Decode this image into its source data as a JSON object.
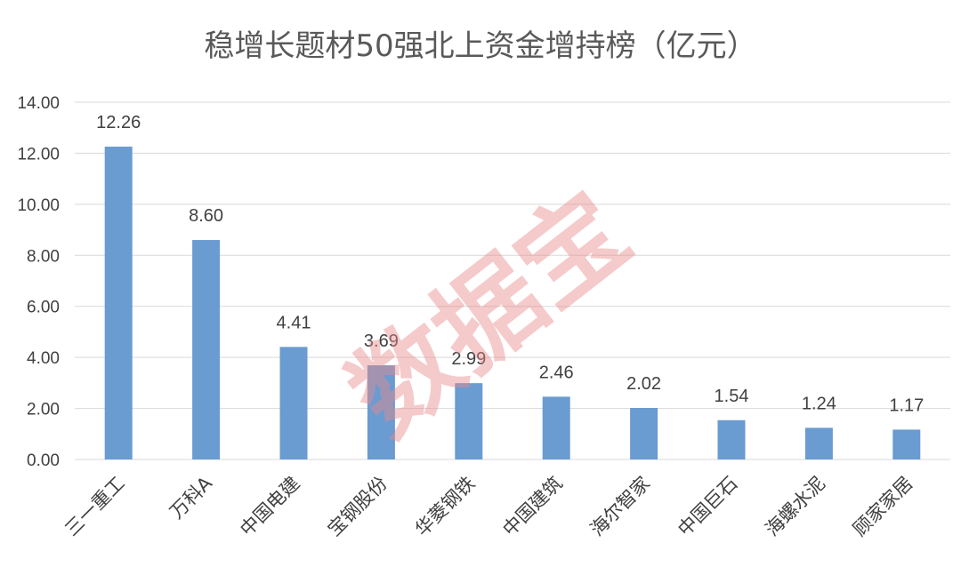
{
  "chart_data": {
    "type": "bar",
    "title": "稳增长题材50强北上资金增持榜（亿元）",
    "xlabel": "",
    "ylabel": "",
    "ylim": [
      0,
      14
    ],
    "y_ticks": [
      "0.00",
      "2.00",
      "4.00",
      "6.00",
      "8.00",
      "10.00",
      "12.00",
      "14.00"
    ],
    "categories": [
      "三一重工",
      "万科A",
      "中国电建",
      "宝钢股份",
      "华菱钢铁",
      "中国建筑",
      "海尔智家",
      "中国巨石",
      "海螺水泥",
      "顾家家居"
    ],
    "values": [
      12.26,
      8.6,
      4.41,
      3.69,
      2.99,
      2.46,
      2.02,
      1.54,
      1.24,
      1.17
    ],
    "data_labels": [
      "12.26",
      "8.60",
      "4.41",
      "3.69",
      "2.99",
      "2.46",
      "2.02",
      "1.54",
      "1.24",
      "1.17"
    ],
    "grid": true,
    "legend": "none",
    "bar_color": "#6a9bd1",
    "grid_color": "#d9d9d9"
  },
  "watermark": {
    "text": "数据宝",
    "color": "#e8898a"
  }
}
